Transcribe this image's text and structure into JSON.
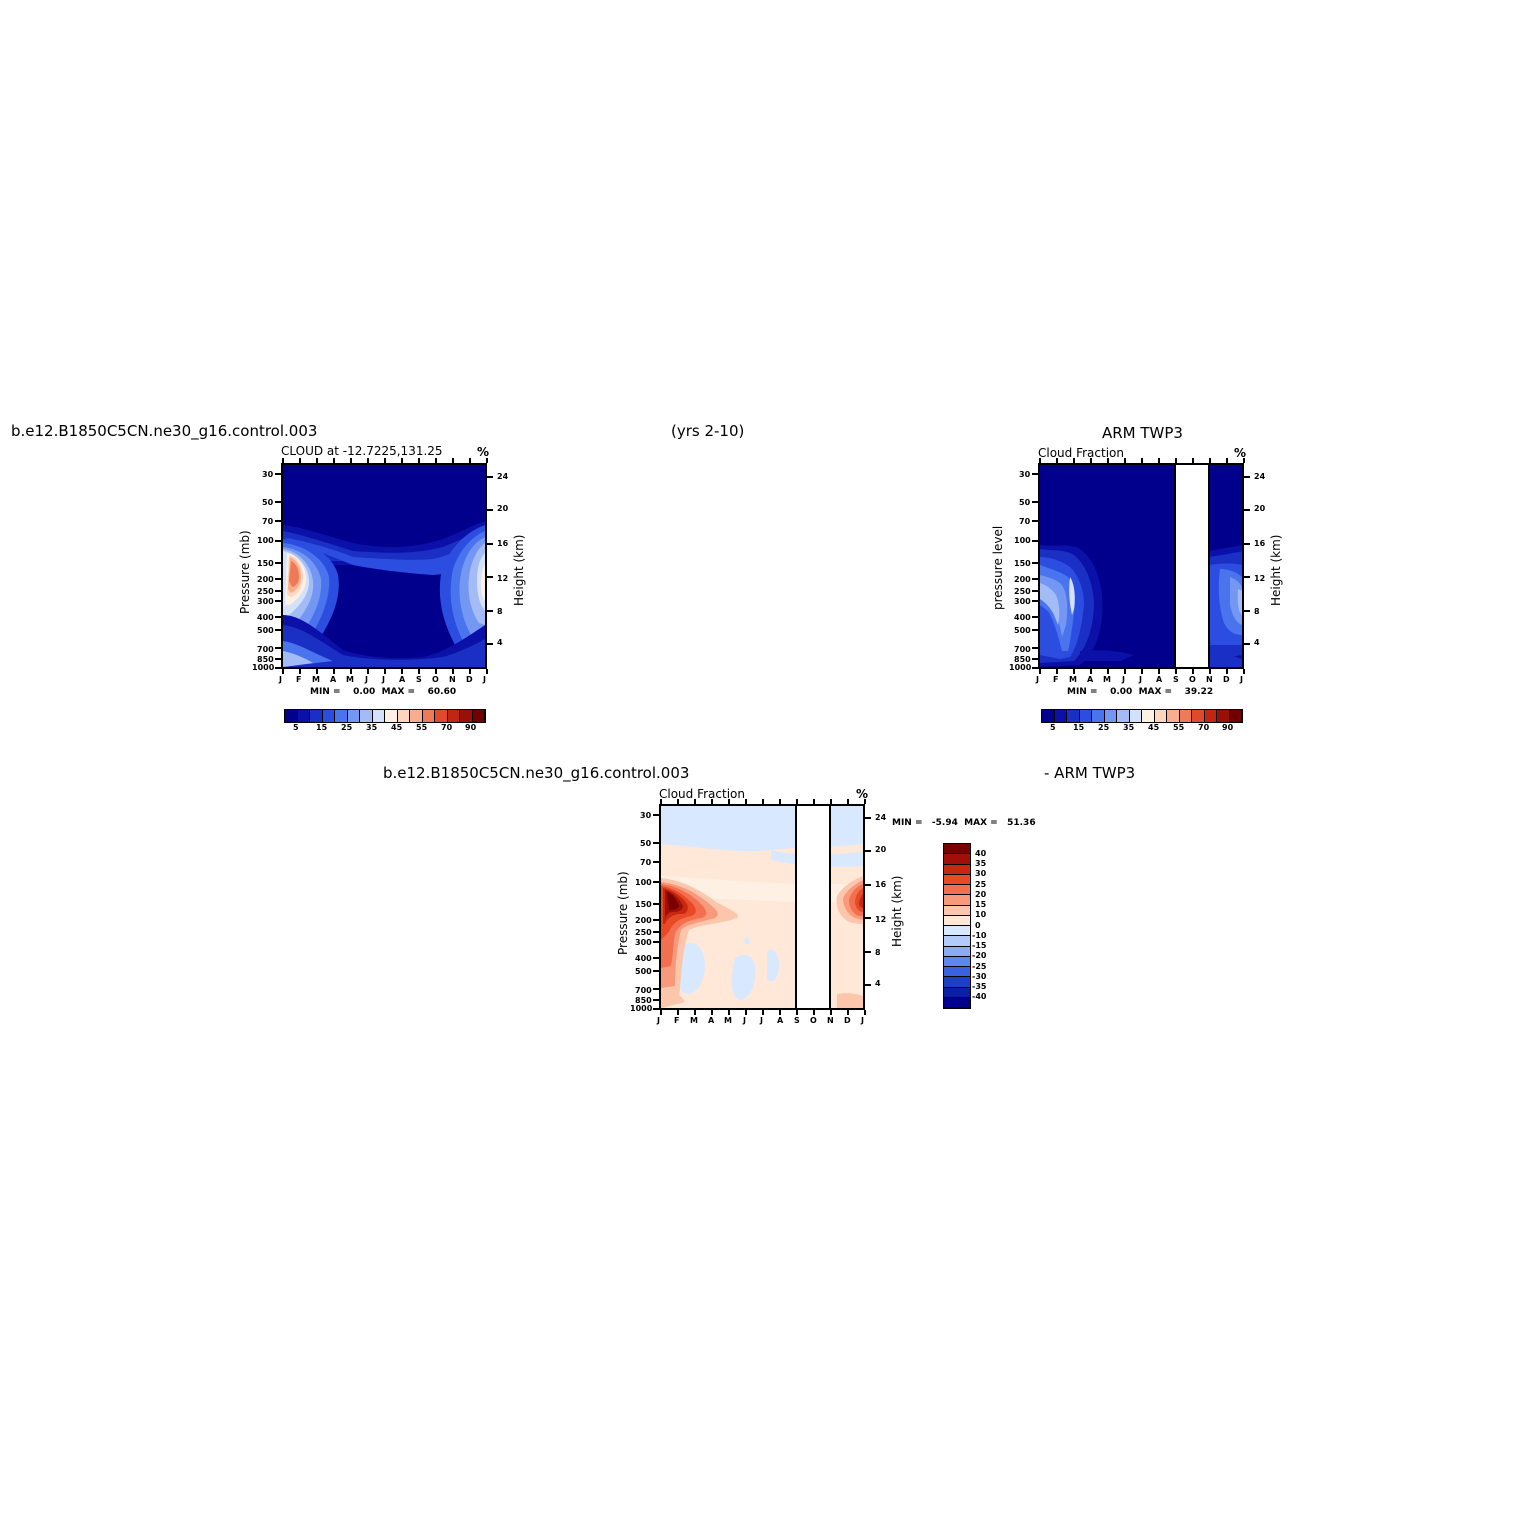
{
  "figure": {
    "case_name": "b.e12.B1850C5CN.ne30_g16.control.003",
    "years": "(yrs 2-10)",
    "obs_name": "ARM TWP3",
    "diff_case_name": "b.e12.B1850C5CN.ne30_g16.control.003",
    "diff_obs_name": "- ARM TWP3"
  },
  "chart_data": [
    {
      "type": "heatmap",
      "id": "model",
      "title": "CLOUD at -12.7225,131.25",
      "unit": "%",
      "ylabel": "Pressure (mb)",
      "ylabel_right": "Height (km)",
      "x_ticks": [
        "J",
        "F",
        "M",
        "A",
        "M",
        "J",
        "J",
        "A",
        "S",
        "O",
        "N",
        "D",
        "J"
      ],
      "y_ticks": [
        "30",
        "50",
        "70",
        "100",
        "150",
        "200",
        "250",
        "300",
        "400",
        "500",
        "700",
        "850",
        "1000"
      ],
      "y_ticks_right": [
        "24",
        "20",
        "16",
        "12",
        "8",
        "4"
      ],
      "min_label": "MIN =",
      "min_value": "0.00",
      "max_label": "MAX =",
      "max_value": "60.60",
      "max_numeric": 60.6,
      "colorbar_labels": [
        "5",
        "15",
        "25",
        "35",
        "45",
        "55",
        "70",
        "90"
      ]
    },
    {
      "type": "heatmap",
      "id": "obs",
      "title": "Cloud Fraction",
      "unit": "%",
      "ylabel": "pressure level",
      "ylabel_right": "Height (km)",
      "x_ticks": [
        "J",
        "F",
        "M",
        "A",
        "M",
        "J",
        "J",
        "A",
        "S",
        "O",
        "N",
        "D",
        "J"
      ],
      "y_ticks": [
        "30",
        "50",
        "70",
        "100",
        "150",
        "200",
        "250",
        "300",
        "400",
        "500",
        "700",
        "850",
        "1000"
      ],
      "y_ticks_right": [
        "24",
        "20",
        "16",
        "12",
        "8",
        "4"
      ],
      "min_label": "MIN =",
      "min_value": "0.00",
      "max_label": "MAX =",
      "max_value": "39.22",
      "max_numeric": 39.22,
      "missing_months": [
        "S",
        "O"
      ],
      "colorbar_labels": [
        "5",
        "15",
        "25",
        "35",
        "45",
        "55",
        "70",
        "90"
      ]
    },
    {
      "type": "heatmap",
      "id": "diff",
      "title": "Cloud Fraction",
      "unit": "%",
      "ylabel": "Pressure (mb)",
      "ylabel_right": "Height (km)",
      "x_ticks": [
        "J",
        "F",
        "M",
        "A",
        "M",
        "J",
        "J",
        "A",
        "S",
        "O",
        "N",
        "D",
        "J"
      ],
      "y_ticks": [
        "30",
        "50",
        "70",
        "100",
        "150",
        "200",
        "250",
        "300",
        "400",
        "500",
        "700",
        "850",
        "1000"
      ],
      "y_ticks_right": [
        "24",
        "20",
        "16",
        "12",
        "8",
        "4"
      ],
      "min_label": "MIN =",
      "min_value": "-5.94",
      "max_label": "MAX =",
      "max_value": "51.36",
      "max_numeric": 51.36,
      "missing_months": [
        "S",
        "O"
      ],
      "colorbar_labels": [
        "40",
        "35",
        "30",
        "25",
        "20",
        "15",
        "10",
        "0",
        "-10",
        "-15",
        "-20",
        "-25",
        "-30",
        "-35",
        "-40"
      ]
    }
  ],
  "colors": {
    "seq": [
      "#00008c",
      "#0a10a8",
      "#1a2fc4",
      "#2c4ee0",
      "#4a73ee",
      "#7497f3",
      "#a4bcf6",
      "#d3e1fb",
      "#fff0e4",
      "#fdd6bf",
      "#f8ae8e",
      "#ef7a58",
      "#e04a2c",
      "#c12613",
      "#9a0f06",
      "#730000"
    ],
    "div": [
      "#7a0000",
      "#a01008",
      "#c82812",
      "#e84a25",
      "#f27050",
      "#f9997b",
      "#fcc6ad",
      "#ffe8d8",
      "#d8e8ff",
      "#b3cbf8",
      "#8aaaf2",
      "#5e86ec",
      "#3a62e0",
      "#1d3fc8",
      "#0b1ea8",
      "#00008c"
    ]
  }
}
